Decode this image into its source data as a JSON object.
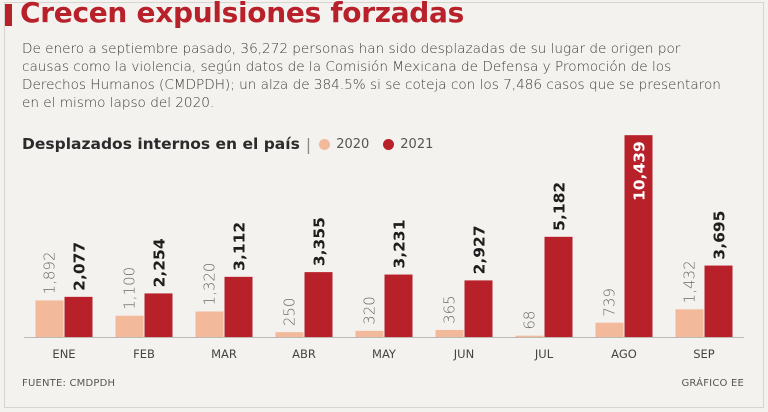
{
  "headline": "Crecen expulsiones forzadas",
  "intro_text": "De enero a septiembre pasado, 36,272 personas han sido desplazadas de su lugar de origen por causas como la violencia, según datos de la Comisión Mexicana de Defensa y Promoción de los Derechos Humanos (CMDPDH); un alza de 384.5% si se coteja con los 7,486 casos que se presentaron en el mismo lapso del 2020.",
  "source": "FUENTE: CMDPDH",
  "credit": "GRÁFICO EE",
  "colors": {
    "accent": "#b8202a",
    "series_2020": "#f2b99b",
    "series_2021": "#b8202a"
  },
  "chart_data": {
    "type": "bar",
    "title": "Desplazados internos en el país",
    "separator": "|",
    "categories": [
      "ENE",
      "FEB",
      "MAR",
      "ABR",
      "MAY",
      "JUN",
      "JUL",
      "AGO",
      "SEP"
    ],
    "series": [
      {
        "name": "2020",
        "values": [
          1892,
          1100,
          1320,
          250,
          320,
          365,
          68,
          739,
          1432
        ],
        "labels": [
          "1,892",
          "1,100",
          "1,320",
          "250",
          "320",
          "365",
          "68",
          "739",
          "1,432"
        ]
      },
      {
        "name": "2021",
        "values": [
          2077,
          2254,
          3112,
          3355,
          3231,
          2927,
          5182,
          10439,
          3695
        ],
        "labels": [
          "2,077",
          "2,254",
          "3,112",
          "3,355",
          "3,231",
          "2,927",
          "5,182",
          "10,439",
          "3,695"
        ]
      }
    ],
    "xlabel": "",
    "ylabel": "",
    "ylim": [
      0,
      10500
    ],
    "grid": false,
    "legend": "top"
  }
}
